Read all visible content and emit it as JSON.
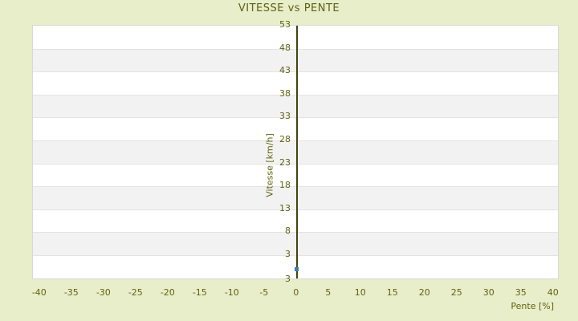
{
  "chart_data": {
    "type": "scatter",
    "title": "VITESSE vs PENTE",
    "xlabel": "Pente [%]",
    "ylabel": "Vitesse [km/h]",
    "x_ticks": [
      -40,
      -35,
      -30,
      -25,
      -20,
      -15,
      -10,
      -5,
      0,
      5,
      10,
      15,
      20,
      25,
      30,
      35,
      40
    ],
    "y_ticks": [
      53,
      48,
      43,
      38,
      33,
      28,
      23,
      18,
      13,
      8,
      3
    ],
    "y_axis_bottom_label": "3",
    "xlim": [
      -41.1,
      40.9
    ],
    "ylim": [
      -2.4,
      53
    ],
    "points": [
      {
        "x": 0,
        "y": 0
      }
    ],
    "grid": "horizontal-alternating-bands",
    "legend": "none",
    "colors": {
      "page_background": "#e8edca",
      "plot_background": "#ffffff",
      "band_alt": "#f2f2f2",
      "gridline": "#e3e3e3",
      "plot_border": "#d8d8d8",
      "text": "#5e640f",
      "title_text": "#5c6213",
      "zero_axis_line": "#41460e",
      "point": "#3c7cb6"
    }
  }
}
